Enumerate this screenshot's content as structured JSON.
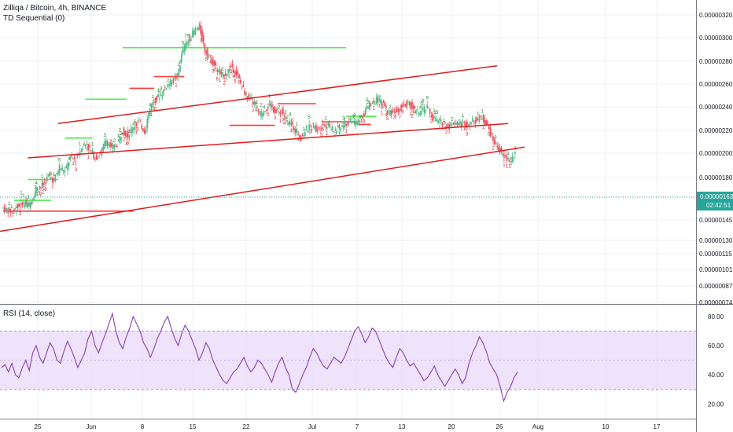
{
  "header": {
    "symbol_line": "Zilliqa / Bitcoin, 4h, BINANCE",
    "indicator_label": "TD Sequential (0)",
    "rsi_label": "RSI (14, close)"
  },
  "colors": {
    "background": "#ffffff",
    "grid": "#eef0f3",
    "up_candle": "#53b987",
    "down_candle": "#eb4d5c",
    "trendline": "#e01a1a",
    "td_buy_level": "#ff3838",
    "td_sell_level": "#4cef4c",
    "td_number_up": "#1b8a1b",
    "td_number_down": "#d42020",
    "rsi_line": "#8b3fb0",
    "rsi_band": "#e8d9f9",
    "price_tag_bg": "#26a69a",
    "price_line": "#26a69a"
  },
  "chart_data": [
    {
      "type": "candlestick",
      "title": "Zilliqa / Bitcoin, 4h, BINANCE",
      "indicator": "TD Sequential (0)",
      "x_ticks": [
        "25",
        "Jun",
        "8",
        "15",
        "22",
        "Jul",
        "7",
        "13",
        "20",
        "26",
        "Aug",
        "10",
        "17"
      ],
      "y_ticks": [
        "0.00000320",
        "0.00000300",
        "0.00000280",
        "0.00000260",
        "0.00000240",
        "0.00000220",
        "0.00000200",
        "0.00000180",
        "0.00000163",
        "0.00000145",
        "0.00000130",
        "0.00000115",
        "0.00000101",
        "0.00000087",
        "0.00000074"
      ],
      "last_price": "0.00000163",
      "countdown": "02:42:51",
      "price_path": [
        [
          0,
          105
        ],
        [
          8,
          100
        ],
        [
          14,
          110
        ],
        [
          20,
          108
        ],
        [
          25,
          125
        ],
        [
          30,
          130
        ],
        [
          34,
          140
        ],
        [
          38,
          135
        ],
        [
          42,
          150
        ],
        [
          46,
          145
        ],
        [
          50,
          160
        ],
        [
          54,
          158
        ],
        [
          57,
          168
        ],
        [
          60,
          175
        ],
        [
          64,
          170
        ],
        [
          68,
          160
        ],
        [
          72,
          165
        ],
        [
          76,
          180
        ],
        [
          80,
          170
        ],
        [
          84,
          175
        ],
        [
          88,
          190
        ],
        [
          92,
          185
        ],
        [
          96,
          195
        ],
        [
          100,
          200
        ],
        [
          104,
          190
        ],
        [
          108,
          215
        ],
        [
          112,
          225
        ],
        [
          116,
          230
        ],
        [
          120,
          240
        ],
        [
          124,
          245
        ],
        [
          128,
          250
        ],
        [
          132,
          280
        ],
        [
          136,
          290
        ],
        [
          140,
          300
        ],
        [
          144,
          305
        ],
        [
          148,
          280
        ],
        [
          152,
          270
        ],
        [
          156,
          260
        ],
        [
          160,
          250
        ],
        [
          164,
          255
        ],
        [
          168,
          262
        ],
        [
          172,
          250
        ],
        [
          176,
          235
        ],
        [
          180,
          225
        ],
        [
          184,
          220
        ],
        [
          188,
          208
        ],
        [
          192,
          215
        ],
        [
          196,
          218
        ],
        [
          200,
          210
        ],
        [
          204,
          212
        ],
        [
          208,
          200
        ],
        [
          212,
          195
        ],
        [
          216,
          188
        ],
        [
          218,
          182
        ],
        [
          222,
          192
        ],
        [
          226,
          195
        ],
        [
          230,
          192
        ],
        [
          234,
          198
        ],
        [
          238,
          196
        ],
        [
          242,
          190
        ],
        [
          246,
          193
        ],
        [
          250,
          198
        ],
        [
          254,
          202
        ],
        [
          258,
          198
        ],
        [
          262,
          205
        ],
        [
          266,
          215
        ],
        [
          270,
          222
        ],
        [
          274,
          225
        ],
        [
          278,
          218
        ],
        [
          282,
          210
        ],
        [
          286,
          212
        ],
        [
          290,
          215
        ],
        [
          294,
          220
        ],
        [
          298,
          218
        ],
        [
          302,
          210
        ],
        [
          306,
          212
        ],
        [
          310,
          215
        ],
        [
          314,
          205
        ],
        [
          318,
          200
        ],
        [
          322,
          198
        ],
        [
          326,
          195
        ],
        [
          330,
          200
        ],
        [
          334,
          198
        ],
        [
          338,
          197
        ],
        [
          342,
          200
        ],
        [
          346,
          202
        ],
        [
          350,
          205
        ],
        [
          354,
          195
        ],
        [
          358,
          180
        ],
        [
          362,
          170
        ],
        [
          366,
          160
        ],
        [
          370,
          158
        ],
        [
          374,
          163
        ]
      ],
      "trendlines": [
        {
          "from": [
            -5,
            78
          ],
          "to": [
            380,
            172
          ]
        },
        {
          "from": [
            18,
            160
          ],
          "to": [
            368,
            198
          ]
        },
        {
          "from": [
            40,
            198
          ],
          "to": [
            360,
            262
          ]
        }
      ],
      "td_levels": [
        {
          "kind": "buy",
          "from": [
            0,
            101
          ],
          "to": [
            95,
            101
          ]
        },
        {
          "kind": "sell",
          "from": [
            8,
            113
          ],
          "to": [
            35,
            113
          ]
        },
        {
          "kind": "sell",
          "from": [
            18,
            136
          ],
          "to": [
            40,
            136
          ]
        },
        {
          "kind": "sell",
          "from": [
            45,
            182
          ],
          "to": [
            65,
            182
          ]
        },
        {
          "kind": "sell",
          "from": [
            60,
            225
          ],
          "to": [
            90,
            225
          ]
        },
        {
          "kind": "sell",
          "from": [
            87,
            282
          ],
          "to": [
            250,
            282
          ]
        },
        {
          "kind": "buy",
          "from": [
            92,
            237
          ],
          "to": [
            110,
            237
          ]
        },
        {
          "kind": "buy",
          "from": [
            110,
            250
          ],
          "to": [
            132,
            250
          ]
        },
        {
          "kind": "buy",
          "from": [
            165,
            196
          ],
          "to": [
            198,
            196
          ]
        },
        {
          "kind": "buy",
          "from": [
            232,
            200
          ],
          "to": [
            258,
            200
          ]
        },
        {
          "kind": "sell",
          "from": [
            250,
            206
          ],
          "to": [
            272,
            206
          ]
        },
        {
          "kind": "buy",
          "from": [
            258,
            197
          ],
          "to": [
            268,
            197
          ]
        },
        {
          "kind": "buy",
          "from": [
            200,
            220
          ],
          "to": [
            228,
            220
          ]
        }
      ]
    },
    {
      "type": "line",
      "title": "RSI (14, close)",
      "y_ticks": [
        "80.00",
        "60.00",
        "40.00",
        "20.00"
      ],
      "ylim": [
        10,
        88
      ],
      "band": [
        30,
        70
      ],
      "series": [
        {
          "values": [
            45,
            47,
            42,
            48,
            40,
            38,
            45,
            50,
            43,
            55,
            60,
            52,
            48,
            55,
            62,
            58,
            50,
            48,
            56,
            63,
            58,
            52,
            45,
            50,
            55,
            65,
            70,
            60,
            55,
            62,
            68,
            75,
            82,
            70,
            62,
            58,
            66,
            72,
            80,
            75,
            70,
            62,
            58,
            52,
            58,
            65,
            70,
            76,
            80,
            72,
            65,
            60,
            68,
            74,
            70,
            64,
            58,
            50,
            55,
            62,
            58,
            50,
            45,
            40,
            36,
            34,
            38,
            42,
            44,
            48,
            52,
            46,
            42,
            45,
            50,
            48,
            44,
            40,
            35,
            42,
            48,
            52,
            45,
            40,
            30,
            28,
            34,
            40,
            45,
            52,
            58,
            55,
            50,
            46,
            44,
            48,
            52,
            50,
            48,
            52,
            58,
            64,
            70,
            73,
            68,
            62,
            66,
            72,
            70,
            64,
            58,
            52,
            48,
            45,
            52,
            58,
            55,
            50,
            46,
            48,
            44,
            40,
            36,
            38,
            42,
            46,
            40,
            36,
            32,
            36,
            40,
            44,
            40,
            34,
            38,
            48,
            55,
            60,
            66,
            62,
            56,
            48,
            44,
            40,
            32,
            22,
            28,
            32,
            38,
            42
          ]
        }
      ]
    }
  ]
}
